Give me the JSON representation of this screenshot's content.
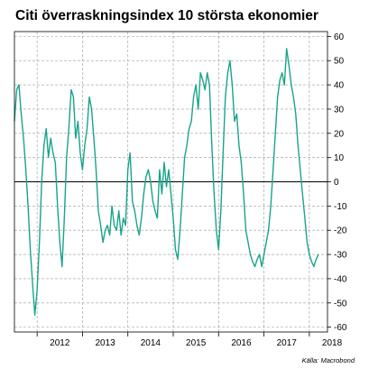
{
  "chart_data": {
    "type": "line",
    "title": "Citi överraskningsindex 10 största ekonomier",
    "source": "Källa: Macrobond",
    "xlabel": "",
    "ylabel": "",
    "x_tick_labels": [
      "2012",
      "2013",
      "2014",
      "2015",
      "2016",
      "2017",
      "2018"
    ],
    "y_ticks": [
      60,
      50,
      40,
      30,
      20,
      10,
      0,
      -10,
      -20,
      -30,
      -40,
      -50,
      -60
    ],
    "xlim": [
      2011.5,
      2018.4
    ],
    "ylim": [
      -62,
      62
    ],
    "y_axis_position": "right",
    "grid": true,
    "zero_line": true,
    "legend": "none",
    "colors": {
      "series": "#1aa38a",
      "grid": "#9b9b9b",
      "zero_line": "#000000"
    },
    "series": [
      {
        "x": [
          2011.5,
          2011.55,
          2011.6,
          2011.65,
          2011.7,
          2011.75,
          2011.8,
          2011.85,
          2011.9,
          2011.95,
          2012.0,
          2012.05,
          2012.1,
          2012.15,
          2012.2,
          2012.25,
          2012.3,
          2012.35,
          2012.4,
          2012.45,
          2012.5,
          2012.55,
          2012.6,
          2012.65,
          2012.7,
          2012.75,
          2012.8,
          2012.85,
          2012.9,
          2012.95,
          2013.0,
          2013.05,
          2013.1,
          2013.15,
          2013.2,
          2013.25,
          2013.3,
          2013.35,
          2013.4,
          2013.45,
          2013.5,
          2013.55,
          2013.6,
          2013.65,
          2013.7,
          2013.75,
          2013.8,
          2013.85,
          2013.9,
          2013.95,
          2014.0,
          2014.05,
          2014.1,
          2014.15,
          2014.2,
          2014.25,
          2014.3,
          2014.35,
          2014.4,
          2014.45,
          2014.5,
          2014.55,
          2014.6,
          2014.65,
          2014.7,
          2014.75,
          2014.8,
          2014.85,
          2014.9,
          2014.95,
          2015.0,
          2015.05,
          2015.1,
          2015.15,
          2015.2,
          2015.25,
          2015.3,
          2015.35,
          2015.4,
          2015.45,
          2015.5,
          2015.55,
          2015.6,
          2015.65,
          2015.7,
          2015.75,
          2015.8,
          2015.85,
          2015.9,
          2015.95,
          2016.0,
          2016.05,
          2016.1,
          2016.15,
          2016.2,
          2016.25,
          2016.3,
          2016.35,
          2016.4,
          2016.45,
          2016.5,
          2016.55,
          2016.6,
          2016.65,
          2016.7,
          2016.75,
          2016.8,
          2016.85,
          2016.9,
          2016.95,
          2017.0,
          2017.05,
          2017.1,
          2017.15,
          2017.2,
          2017.25,
          2017.3,
          2017.35,
          2017.4,
          2017.45,
          2017.5,
          2017.55,
          2017.6,
          2017.65,
          2017.7,
          2017.75,
          2017.8,
          2017.85,
          2017.9,
          2017.95,
          2018.0,
          2018.05,
          2018.1,
          2018.15,
          2018.2
        ],
        "values": [
          25,
          38,
          40,
          28,
          18,
          5,
          -10,
          -28,
          -42,
          -55,
          -45,
          -25,
          0,
          15,
          22,
          10,
          18,
          12,
          8,
          -10,
          -25,
          -35,
          -15,
          10,
          22,
          38,
          35,
          18,
          25,
          12,
          5,
          15,
          22,
          35,
          30,
          18,
          5,
          -12,
          -18,
          -25,
          -20,
          -18,
          -22,
          -10,
          -18,
          -20,
          -12,
          -22,
          -15,
          -18,
          5,
          12,
          -8,
          -12,
          -18,
          -22,
          -15,
          -5,
          2,
          5,
          0,
          -8,
          -12,
          -15,
          5,
          -5,
          8,
          -2,
          5,
          -5,
          -15,
          -28,
          -32,
          -20,
          -5,
          10,
          15,
          22,
          25,
          35,
          40,
          30,
          45,
          42,
          38,
          45,
          40,
          15,
          -5,
          -20,
          -28,
          -12,
          12,
          35,
          45,
          50,
          40,
          25,
          28,
          15,
          8,
          -5,
          -20,
          -25,
          -30,
          -33,
          -35,
          -32,
          -30,
          -35,
          -30,
          -25,
          -20,
          -10,
          5,
          20,
          35,
          42,
          45,
          40,
          55,
          48,
          40,
          35,
          28,
          15,
          5,
          -5,
          -15,
          -25,
          -30,
          -33,
          -35,
          -32,
          -30
        ]
      }
    ]
  }
}
